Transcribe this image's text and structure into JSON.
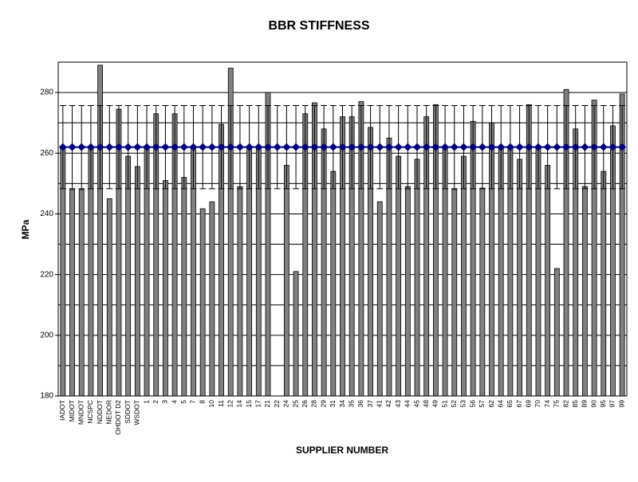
{
  "chart_data": {
    "type": "bar",
    "title": "BBR STIFFNESS",
    "x_label": "SUPPLIER NUMBER",
    "y_label": "MPa",
    "categories": [
      "IADOT",
      "MIDOT",
      "MNDOT",
      "NCSPC",
      "NDDOT",
      "NEDOR",
      "OHDOT D2",
      "SDDOT",
      "WSDOT",
      "1",
      "2",
      "3",
      "4",
      "5",
      "7",
      "8",
      "10",
      "11",
      "12",
      "14",
      "15",
      "17",
      "21",
      "22",
      "24",
      "25",
      "26",
      "28",
      "29",
      "31",
      "34",
      "35",
      "36",
      "37",
      "41",
      "42",
      "43",
      "44",
      "45",
      "48",
      "49",
      "51",
      "52",
      "53",
      "56",
      "57",
      "62",
      "64",
      "65",
      "67",
      "69",
      "70",
      "74",
      "75",
      "82",
      "85",
      "89",
      "90",
      "95",
      "97",
      "99"
    ],
    "series": [
      {
        "type": "bar",
        "color": "#808080",
        "values": [
          262,
          248,
          248,
          262,
          289,
          245,
          274.5,
          259,
          255.6,
          262,
          273,
          251,
          273,
          252,
          262,
          241.7,
          244,
          269.5,
          288,
          249,
          262,
          262,
          280,
          null,
          256,
          221,
          273,
          276.6,
          268,
          254,
          272,
          272,
          277,
          268.5,
          244,
          265,
          259,
          249,
          258,
          272,
          276,
          262,
          248,
          259,
          270.5,
          248.5,
          270,
          262,
          262,
          258,
          276,
          262,
          256,
          222,
          281,
          268,
          249,
          277.5,
          254,
          269,
          279.5
        ]
      },
      {
        "type": "line",
        "color": "#000080",
        "values": [
          262,
          262,
          262,
          262,
          262,
          262,
          262,
          262,
          262,
          262,
          262,
          262,
          262,
          262,
          262,
          262,
          262,
          262,
          262,
          262,
          262,
          262,
          262,
          262,
          262,
          262,
          262,
          262,
          262,
          262,
          262,
          262,
          262,
          262,
          262,
          262,
          262,
          262,
          262,
          262,
          262,
          262,
          262,
          262,
          262,
          262,
          262,
          262,
          262,
          262,
          262,
          262,
          262,
          262,
          262,
          262,
          262,
          262,
          262,
          262,
          262
        ],
        "errors": [
          13.7,
          13.7,
          13.7,
          13.7,
          13.7,
          13.7,
          13.7,
          13.7,
          13.7,
          13.7,
          13.7,
          13.7,
          13.7,
          13.7,
          13.7,
          13.7,
          13.7,
          13.7,
          13.7,
          13.7,
          13.7,
          13.7,
          13.7,
          13.7,
          13.7,
          13.7,
          13.7,
          13.7,
          13.7,
          13.7,
          13.7,
          13.7,
          13.7,
          13.7,
          13.7,
          13.7,
          13.7,
          13.7,
          13.7,
          13.7,
          13.7,
          13.7,
          13.7,
          13.7,
          13.7,
          13.7,
          13.7,
          13.7,
          13.7,
          13.7,
          13.7,
          13.7,
          13.7,
          13.7,
          13.7,
          13.7,
          13.7,
          13.7,
          13.7,
          13.7,
          13.7
        ]
      }
    ],
    "ylim": [
      180,
      290
    ],
    "yticks": [
      180,
      200,
      220,
      240,
      260,
      280
    ],
    "minor_grid": [
      190,
      210,
      230,
      250,
      270,
      290
    ],
    "grid": true
  }
}
